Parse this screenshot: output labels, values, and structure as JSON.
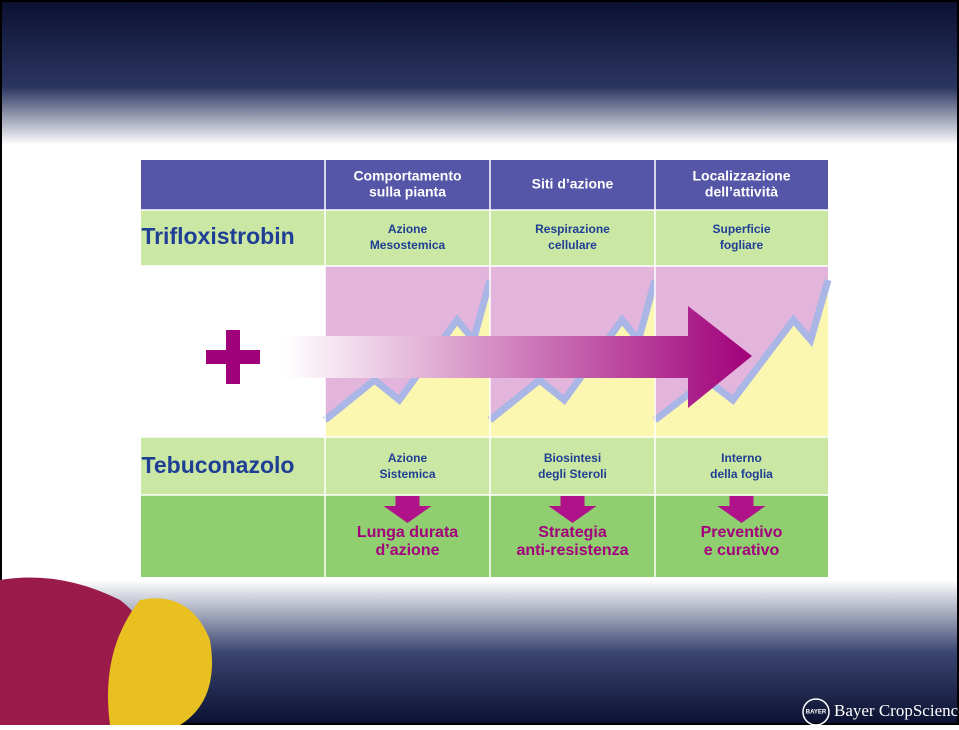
{
  "header": {
    "corner": null,
    "columns": [
      [
        "Comportamento",
        "sulla pianta"
      ],
      [
        "Siti d’azione"
      ],
      [
        "Localizzazione",
        "dell’attività"
      ]
    ]
  },
  "rows": [
    {
      "name": "Trifloxistrobin",
      "cells": [
        [
          "Azione",
          "Mesostemica"
        ],
        [
          "Respirazione",
          "cellulare"
        ],
        [
          "Superficie",
          "fogliare"
        ]
      ]
    },
    {
      "name": "Tebuconazolo",
      "cells": [
        [
          "Azione",
          "Sistemica"
        ],
        [
          "Biosintesi",
          "degli Steroli"
        ],
        [
          "Interno",
          "della foglia"
        ]
      ]
    }
  ],
  "results": [
    [
      "Lunga durata",
      "d’azione"
    ],
    [
      "Strategia",
      "anti-resistenza"
    ],
    [
      "Preventivo",
      "e curativo"
    ]
  ],
  "logo": {
    "badge": "BAYER",
    "text": "Bayer CropScience"
  }
}
